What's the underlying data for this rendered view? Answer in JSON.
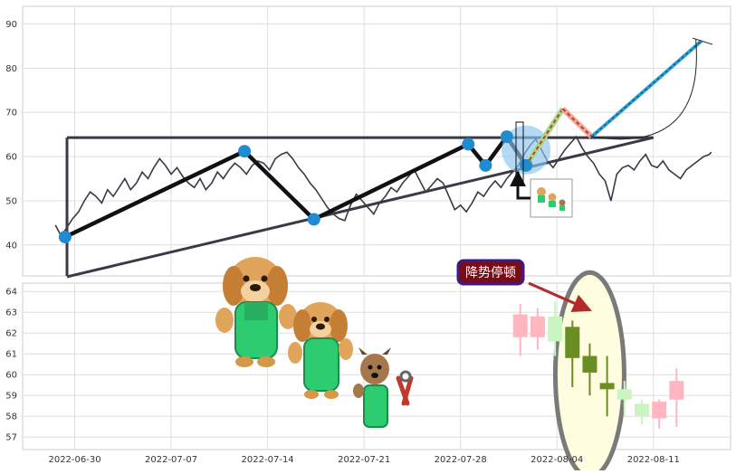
{
  "chart_data": [
    {
      "type": "line",
      "panel": "upper",
      "title": "",
      "xlabel": "",
      "ylabel": "",
      "ylim": [
        33,
        94
      ],
      "yticks": [
        40,
        50,
        60,
        70,
        80,
        90
      ],
      "grid": true,
      "series": [
        {
          "role": "price-line",
          "color": "#3a3a46",
          "x": [
            0,
            0.3,
            0.6,
            0.9,
            1.2,
            1.5,
            1.8,
            2.1,
            2.4,
            2.7,
            3.0,
            3.3,
            3.6,
            3.9,
            4.2,
            4.5,
            4.8,
            5.1,
            5.4,
            5.7,
            6.0,
            6.3,
            6.6,
            6.9,
            7.2,
            7.5,
            7.8,
            8.1,
            8.4,
            8.7,
            9.0,
            9.3,
            9.6,
            9.9,
            10.2,
            10.5,
            10.8,
            11.1,
            11.4,
            11.7,
            12.0,
            12.3,
            12.6,
            12.9,
            13.2,
            13.5,
            13.8,
            14.1,
            14.4,
            14.7,
            15.0,
            15.3,
            15.6,
            15.9,
            16.2,
            16.5,
            16.8,
            17.1,
            17.4,
            17.7,
            18.0,
            18.3,
            18.6,
            18.9,
            19.2,
            19.5,
            19.8,
            20.1,
            20.4,
            20.7,
            21.0,
            21.3,
            21.6,
            21.9,
            22.2,
            22.5,
            22.8,
            23.1,
            23.4,
            23.7,
            24.0,
            24.3,
            24.6,
            24.9,
            25.2,
            25.5,
            25.8,
            26.1,
            26.4,
            26.7,
            27.0,
            27.3,
            27.6,
            27.9,
            28.2,
            28.5,
            28.8,
            29.1,
            29.4,
            29.7,
            30.0,
            30.3,
            30.6,
            30.9,
            31.2,
            31.5,
            31.8,
            32.1,
            32.4,
            32.7,
            33.0,
            33.3,
            33.6,
            33.9,
            34.0
          ],
          "y": [
            44.5,
            42.0,
            44.0,
            46.0,
            47.5,
            50.0,
            52.0,
            51.0,
            49.5,
            52.5,
            51.0,
            53.0,
            55.0,
            52.5,
            54.0,
            56.5,
            55.0,
            57.5,
            59.5,
            58.0,
            56.0,
            57.5,
            55.5,
            54.0,
            53.0,
            55.0,
            52.5,
            54.0,
            56.5,
            55.0,
            57.0,
            58.5,
            57.5,
            56.0,
            58.0,
            59.0,
            58.5,
            57.0,
            59.5,
            60.5,
            61.0,
            59.5,
            57.5,
            56.0,
            54.0,
            52.5,
            50.5,
            48.5,
            47.0,
            46.0,
            45.5,
            49.0,
            51.5,
            50.0,
            48.5,
            47.0,
            49.5,
            51.0,
            53.0,
            52.0,
            54.0,
            55.5,
            57.0,
            54.5,
            52.0,
            53.5,
            55.0,
            54.0,
            51.0,
            48.0,
            49.0,
            47.5,
            49.5,
            52.0,
            51.0,
            53.0,
            54.5,
            53.0,
            55.0,
            56.5,
            58.0,
            60.5,
            62.5,
            64.0,
            61.5,
            59.0,
            57.5,
            59.5,
            61.5,
            63.0,
            64.5,
            62.0,
            60.0,
            58.5,
            56.0,
            54.5,
            50.0,
            56.0,
            57.5,
            58.0,
            57.0,
            59.0,
            60.5,
            58.0,
            57.5,
            59.0,
            57.0,
            56.0,
            55.0,
            57.0,
            58.0,
            59.0,
            60.0,
            60.5,
            61.0
          ]
        }
      ],
      "zigzag": {
        "x": [
          0.5,
          9.8,
          13.4,
          21.4,
          22.3,
          23.4,
          24.4
        ],
        "y": [
          41.8,
          61.2,
          45.8,
          62.8,
          58.0,
          64.5,
          58.0
        ]
      },
      "projection": {
        "x": [
          24.4,
          26.3,
          27.8,
          33.5
        ],
        "y": [
          58.0,
          70.8,
          64.5,
          86.2
        ]
      },
      "channel": {
        "top": {
          "x": [
            0.6,
            31.0
          ],
          "y": [
            64.3,
            64.3
          ]
        },
        "bottom": {
          "x": [
            0.6,
            31.0
          ],
          "y": [
            32.8,
            64.3
          ]
        }
      },
      "curve": {
        "x": [
          27.8,
          33.2
        ],
        "y": [
          64.5,
          86.5
        ]
      },
      "highlight": {
        "x": 24.4,
        "y": 61.5
      }
    },
    {
      "type": "candlestick",
      "panel": "lower",
      "title": "",
      "xlabel": "",
      "ylabel": "",
      "ylim": [
        56.4,
        64.4
      ],
      "yticks": [
        57,
        58,
        59,
        60,
        61,
        62,
        63,
        64
      ],
      "grid": true,
      "candles": [
        {
          "x": 24.1,
          "open": 61.8,
          "close": 62.9,
          "high": 63.4,
          "low": 60.9,
          "direction": "up"
        },
        {
          "x": 25.0,
          "open": 61.8,
          "close": 62.8,
          "high": 63.2,
          "low": 61.2,
          "direction": "up"
        },
        {
          "x": 25.9,
          "open": 62.8,
          "close": 61.6,
          "high": 63.5,
          "low": 60.9,
          "direction": "down"
        },
        {
          "x": 26.8,
          "open": 62.3,
          "close": 60.8,
          "high": 62.6,
          "low": 59.4,
          "direction": "down"
        },
        {
          "x": 27.7,
          "open": 60.9,
          "close": 60.1,
          "high": 61.5,
          "low": 59.0,
          "direction": "down"
        },
        {
          "x": 28.6,
          "open": 59.6,
          "close": 59.3,
          "high": 60.9,
          "low": 58.0,
          "direction": "down"
        },
        {
          "x": 29.5,
          "open": 59.3,
          "close": 58.8,
          "high": 59.7,
          "low": 58.0,
          "direction": "down"
        },
        {
          "x": 30.4,
          "open": 58.6,
          "close": 58.0,
          "high": 58.8,
          "low": 57.6,
          "direction": "down"
        },
        {
          "x": 31.3,
          "open": 57.9,
          "close": 58.7,
          "high": 58.8,
          "low": 57.4,
          "direction": "up"
        },
        {
          "x": 32.2,
          "open": 58.8,
          "close": 59.7,
          "high": 60.3,
          "low": 57.5,
          "direction": "up"
        }
      ],
      "ellipse_center": {
        "x": 27.7,
        "y": 60.0
      },
      "arrow_target": {
        "x": 27.0,
        "y": 63.0
      }
    }
  ],
  "x_axis": {
    "tick_positions": [
      1.0,
      6.0,
      11.0,
      16.0,
      21.0,
      26.0,
      31.0
    ],
    "tick_labels": [
      "2022-06-30",
      "2022-07-07",
      "2022-07-14",
      "2022-07-21",
      "2022-07-28",
      "2022-08-04",
      "2022-08-11"
    ],
    "xlim": [
      -1.7,
      35.0
    ]
  },
  "annotation": {
    "text": "降势停顿",
    "box_fill": "#7a0c18",
    "box_border": "#3d1a8a",
    "arrow_color": "#b22a2a"
  },
  "colors": {
    "grid": "#dedede",
    "panel_border": "#cccccc",
    "price_line": "#3a3a46",
    "zigzag": "#111111",
    "marker": "#1f8bd1",
    "channel": "#3a3a46",
    "projection_dashed_red": "#c0392b",
    "projection_dashed_blue": "#2aa0d8",
    "projection_fill_red": "#f1a99a",
    "projection_fill_green": "#a7d98a",
    "candle_up": "#ffb6c1",
    "candle_down": "#6b8e23",
    "candle_up_faded": "#c9f5c0",
    "ellipse_fill": "#fffde0",
    "ellipse_stroke": "#7a7a7a",
    "highlight_circle": "#8ec5f0"
  },
  "decorations": [
    {
      "name": "dog-in-green-overalls-large-icon"
    },
    {
      "name": "dog-in-green-overalls-medium-icon"
    },
    {
      "name": "dog-with-pliers-icon"
    },
    {
      "name": "dogs-thumbnail-icon"
    }
  ]
}
